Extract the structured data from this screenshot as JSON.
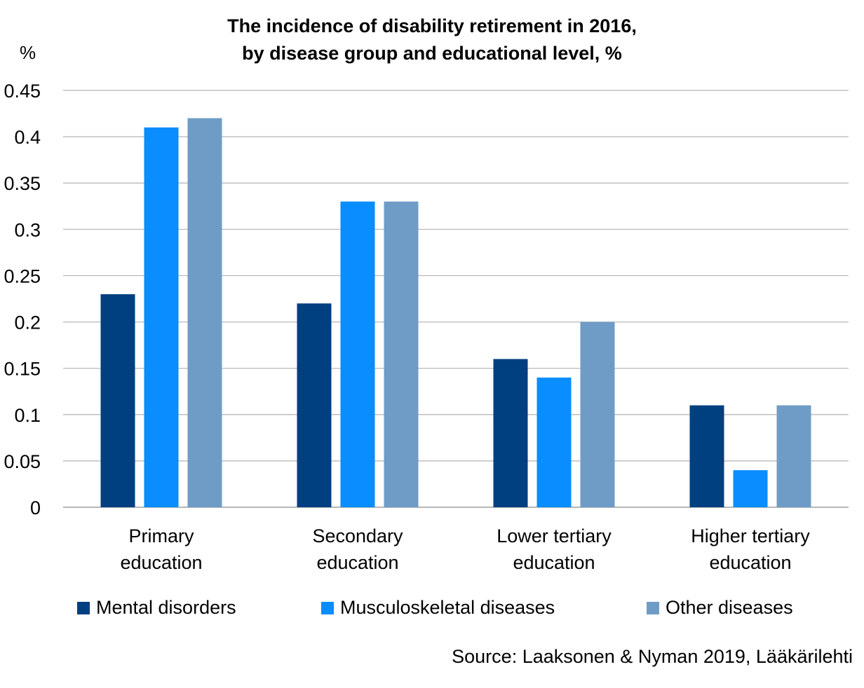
{
  "chart_data": {
    "type": "bar",
    "title_lines": [
      "The incidence of disability retirement in 2016,",
      "by disease group and educational level, %"
    ],
    "ylabel": "%",
    "xlabel": "",
    "ylim": [
      0,
      0.45
    ],
    "yticks": [
      "0",
      "0.05",
      "0.1",
      "0.15",
      "0.2",
      "0.25",
      "0.3",
      "0.35",
      "0.4",
      "0.45"
    ],
    "grid": true,
    "legend_position": "bottom",
    "categories": [
      [
        "Primary",
        "education"
      ],
      [
        "Secondary",
        "education"
      ],
      [
        "Lower tertiary",
        "education"
      ],
      [
        "Higher tertiary",
        "education"
      ]
    ],
    "series": [
      {
        "name": "Mental disorders",
        "color": "#003F80",
        "values": [
          0.23,
          0.22,
          0.16,
          0.11
        ]
      },
      {
        "name": "Musculoskeletal diseases",
        "color": "#0A8DFF",
        "values": [
          0.41,
          0.33,
          0.14,
          0.04
        ]
      },
      {
        "name": "Other diseases",
        "color": "#6F9CC6",
        "values": [
          0.42,
          0.33,
          0.2,
          0.11
        ]
      }
    ],
    "source": "Source: Laaksonen & Nyman 2019, Lääkärilehti"
  }
}
